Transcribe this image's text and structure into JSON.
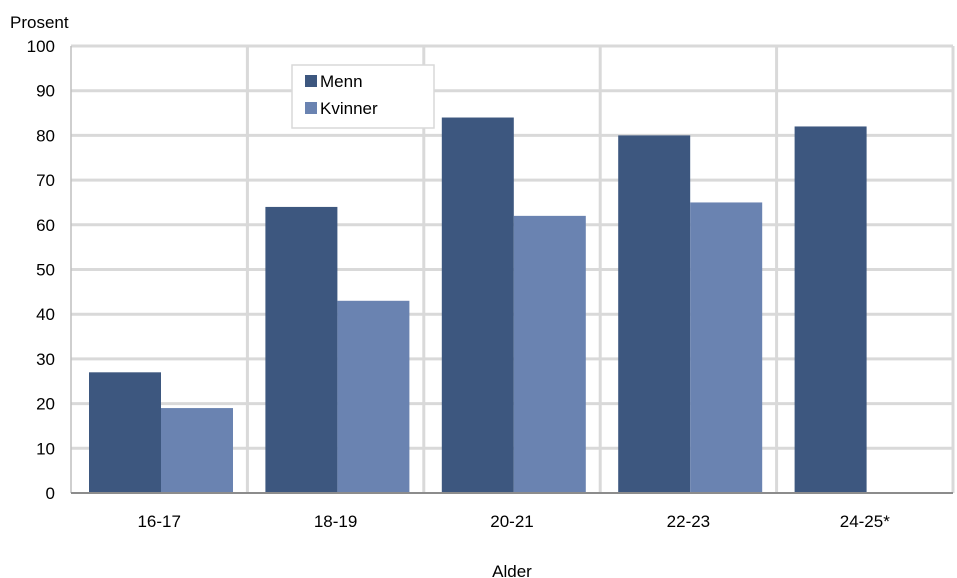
{
  "chart_data": {
    "type": "bar",
    "title": "",
    "ylabel": "Prosent",
    "xlabel": "Alder",
    "categories": [
      "16-17",
      "18-19",
      "20-21",
      "22-23",
      "24-25*"
    ],
    "series": [
      {
        "name": "Menn",
        "color": "#3d577f",
        "values": [
          27,
          64,
          84,
          80,
          82
        ]
      },
      {
        "name": "Kvinner",
        "color": "#6a83b1",
        "values": [
          19,
          43,
          62,
          65,
          null
        ]
      }
    ],
    "ylim": [
      0,
      100
    ],
    "yticks": [
      "0",
      "10",
      "20",
      "30",
      "40",
      "50",
      "60",
      "70",
      "80",
      "90",
      "100"
    ],
    "grid": true,
    "legend_position": "top-left"
  }
}
